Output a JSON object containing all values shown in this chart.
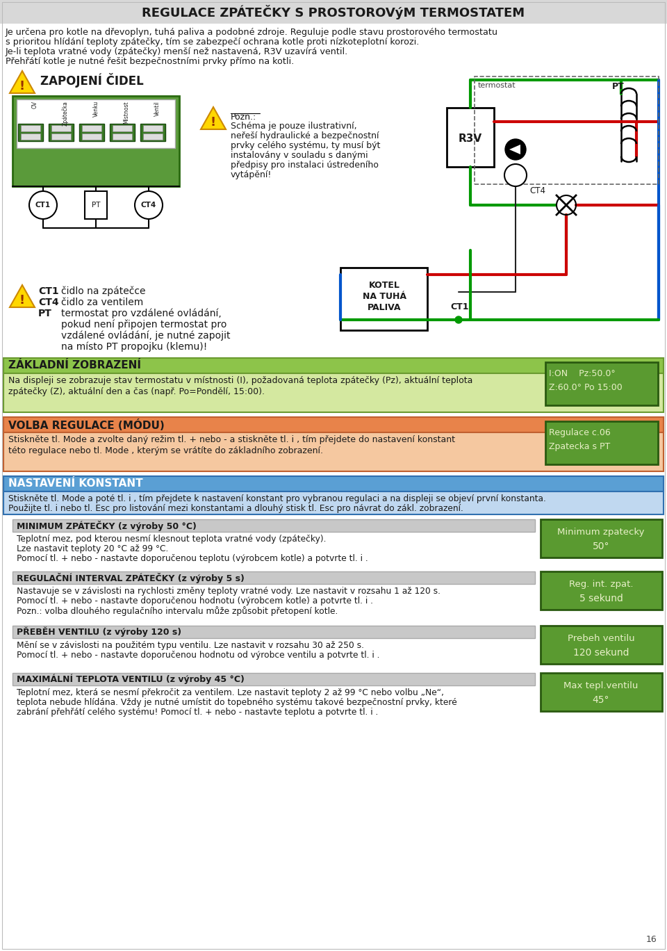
{
  "title": "REGULACE ZPÁTEČKY S PROSTOROVýM TERMOSTATEM",
  "title_bg": "#d8d8d8",
  "page_bg": "#ffffff",
  "intro_text1": "Je určena pro kotle na dřevoplyn, tuhá paliva a podobné zdroje. Reguluje podle stavu prostorového termostatu",
  "intro_text2": "s prioritou hlídání teploty zpátečky, tím se zabezpečí ochrana kotle proti nízkoteplotní korozi.",
  "intro_text3": "Je-li teplota vratné vody (zpátečky) menší než nastavená, R3V uzavírá ventil.",
  "intro_text4": "Přehřátí kotle je nutné řešit bezpečnostními prvky přímo na kotli.",
  "section_zapojeni": "ZAPOJENÍ ČIDEL",
  "pozn_title": "Pozn.:",
  "ct1_desc": "čidlo na zpátečce",
  "ct4_desc": "čidlo za ventilem",
  "pt_desc1": "termostat pro vzdálené ovládání,",
  "pt_desc2": "pokud není připojen termostat pro",
  "pt_desc3": "vzdálené ovládání, je nutné zapojit",
  "pt_desc4": "na místo PT propojku (klemu)!",
  "section_zakladni": "ZÁKLADNÍ ZOBRAZENÍ",
  "zakladni_text1": "Na displeji se zobrazuje stav termostatu v místnosti (I), požadovaná teplota zpátečky (Pz), aktuální teplota",
  "zakladni_text2": "zpátečky (Z), aktuální den a čas (např. Po=Pondělí, 15:00).",
  "section_volba": "VOLBA REGULACE (MÓDU)",
  "volba_text1": "Stiskněte tl. Mode a zvolte daný režim tl. + nebo - a stiskněte tl. i , tím přejdete do nastavení konstant",
  "volba_text2": "této regulace nebo tl. Mode , kterým se vrátíte do základního zobrazení.",
  "section_nastaveni": "NASTAVENÍ KONSTANT",
  "nastaveni_text1": "Stiskněte tl. Mode a poté tl. i , tím přejdete k nastavení konstant pro vybranou regulaci a na displeji se objeví první konstanta.",
  "nastaveni_text2": "Použijte tl. i nebo tl. Esc pro listování mezi konstantami a dlouhý stisk tl. Esc pro návrat do zákl. zobrazení.",
  "sub_minimum": "MINIMUM ZPÁTEČKY (z výroby 50 °C)",
  "minimum_text1": "Teplotní mez, pod kterou nesmí klesnout teplota vratné vody (zpátečky).",
  "minimum_text2": "Lze nastavit teploty 20 °C až 99 °C.",
  "minimum_text3": "Pomocí tl. + nebo - nastavte doporučenou teplotu (výrobcem kotle) a potvrte tl. i .",
  "minimum_display1": "Minimum zpatecky",
  "minimum_display2": "50°",
  "sub_regulacni": "REGULAČNÍ INTERVAL ZPÁTEČKY (z výroby 5 s)",
  "regulacni_text1": "Nastavuje se v závislosti na rychlosti změny teploty vratné vody. Lze nastavit v rozsahu 1 až 120 s.",
  "regulacni_text2": "Pomocí tl. + nebo - nastavte doporučenou hodnotu (výrobcem kotle) a potvrte tl. i .",
  "regulacni_text3": "Pozn.: volba dlouhého regulačního intervalu může způsobit přetopení kotle.",
  "regulacni_display1": "Reg. int. zpat.",
  "regulacni_display2": "5 sekund",
  "sub_prebeh": "PŘEBĚH VENTILU (z výroby 120 s)",
  "prebeh_text1": "Mění se v závislosti na použitém typu ventilu. Lze nastavit v rozsahu 30 až 250 s.",
  "prebeh_text2": "Pomocí tl. + nebo - nastavte doporučenou hodnotu od výrobce ventilu a potvrte tl. i .",
  "prebeh_display1": "Prebeh ventilu",
  "prebeh_display2": "120 sekund",
  "sub_maximalni": "MAXIMÁLNÍ TEPLOTA VENTILU (z výroby 45 °C)",
  "maximalni_text1": "Teplotní mez, která se nesmí překročit za ventilem. Lze nastavit teploty 2 až 99 °C nebo volbu „Ne“,",
  "maximalni_text2": "teplota nebude hlídána. Vždy je nutné umístit do topebného systému takové bezpečnostní prvky, které",
  "maximalni_text3": "zabrání přehřátí celého systému! Pomocí tl. + nebo - nastavte teplotu a potvrte tl. i .",
  "maximalni_display1": "Max tepl.ventilu",
  "maximalni_display2": "45°",
  "page_number": "16",
  "color_green_header": "#8dc44a",
  "color_orange_header": "#e8834a",
  "color_blue_header": "#5a9fd4",
  "color_light_green_bg": "#d4e8a0",
  "color_orange_bg": "#f5c8a0",
  "color_blue_bg": "#c0d8f0",
  "color_sub_gray": "#c8c8c8",
  "color_display_bg": "#5a9a30",
  "color_display_text": "#e8f0c8",
  "color_red_line": "#cc0000",
  "color_green_line": "#009900",
  "color_blue_line": "#0055cc",
  "color_dark_text": "#1a1a1a",
  "color_border_green": "#6a9a30",
  "terminal_labels": [
    "OV",
    "Zpátečka",
    "Venku",
    "Místnost",
    "Ventil"
  ]
}
